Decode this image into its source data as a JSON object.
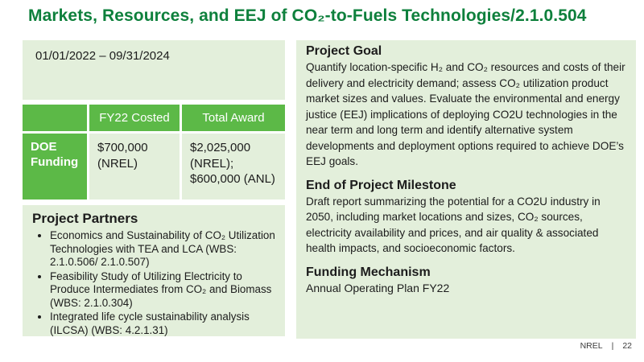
{
  "colors": {
    "brand-green": "#0e803c",
    "table-green": "#5cb947",
    "box-green": "#e3efdb",
    "text-dark": "#1c1c1c"
  },
  "slide": {
    "title": "Markets, Resources, and EEJ of CO₂-to-Fuels Technologies/2.1.0.504",
    "project_period": "01/01/2022 – 09/31/2024",
    "funding_table": {
      "col_headers": [
        "FY22 Costed",
        "Total Award"
      ],
      "row_header": "DOE Funding",
      "fy22_costed": "$700,000 (NREL)",
      "total_award": "$2,025,000 (NREL); $600,000 (ANL)"
    },
    "project_partners": {
      "heading": "Project Partners",
      "items": [
        "Economics and Sustainability of CO₂ Utilization Technologies with TEA and LCA (WBS: 2.1.0.506/ 2.1.0.507)",
        "Feasibility Study of Utilizing Electricity to Produce Intermediates from CO₂ and Biomass (WBS: 2.1.0.304)",
        "Integrated life cycle sustainability analysis (ILCSA) (WBS: 4.2.1.31)"
      ]
    },
    "sections": {
      "project_goal": {
        "heading": "Project Goal",
        "body": "Quantify location-specific H₂ and CO₂ resources and costs of their delivery and electricity demand; assess CO₂ utilization product market sizes and values. Evaluate the environmental and energy justice (EEJ) implications of deploying CO2U technologies in the near term and long term and identify alternative system developments and deployment options required to achieve DOE’s EEJ goals."
      },
      "milestone": {
        "heading": "End of Project Milestone",
        "body": "Draft report summarizing the potential for a CO2U industry in 2050, including market locations and sizes, CO₂ sources, electricity  availability and prices, and air quality & associated health impacts, and socioeconomic factors."
      },
      "funding_mechanism": {
        "heading": "Funding Mechanism",
        "body": "Annual Operating Plan FY22"
      }
    }
  },
  "footer": {
    "brand": "NREL",
    "separator": "|",
    "page_number": "22"
  }
}
